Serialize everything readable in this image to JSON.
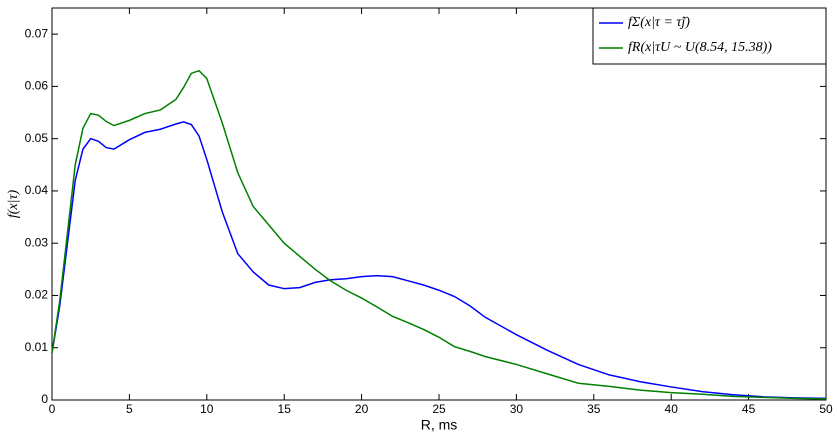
{
  "chart_data": {
    "type": "line",
    "x_label": "R, ms",
    "y_label": "f(x|τ)",
    "x": [
      0,
      0.5,
      1,
      1.5,
      2,
      2.5,
      3,
      3.5,
      4,
      5,
      6,
      7,
      8,
      8.5,
      9,
      9.5,
      10,
      11,
      12,
      13,
      14,
      15,
      16,
      17,
      18,
      19,
      20,
      21,
      22,
      23,
      24,
      25,
      26,
      27,
      28,
      30,
      32,
      34,
      36,
      38,
      40,
      42,
      44,
      46,
      48,
      50
    ],
    "series": [
      {
        "name": "fΣ(x|τ = τ̃j)",
        "color": "#0000ff",
        "values": [
          0.009,
          0.018,
          0.03,
          0.042,
          0.048,
          0.05,
          0.0495,
          0.0483,
          0.048,
          0.0498,
          0.0512,
          0.0518,
          0.0528,
          0.0532,
          0.0527,
          0.0505,
          0.046,
          0.036,
          0.028,
          0.0245,
          0.022,
          0.0213,
          0.0215,
          0.0225,
          0.023,
          0.0232,
          0.0236,
          0.0238,
          0.0236,
          0.0228,
          0.022,
          0.021,
          0.0198,
          0.018,
          0.0158,
          0.0125,
          0.0095,
          0.0068,
          0.0048,
          0.0035,
          0.0025,
          0.0016,
          0.001,
          0.0006,
          0.0004,
          0.0003
        ]
      },
      {
        "name": "fR(x|τU ~ U(8.54, 15.38))",
        "color": "#008000",
        "values": [
          0.009,
          0.019,
          0.032,
          0.045,
          0.052,
          0.0548,
          0.0545,
          0.0533,
          0.0525,
          0.0535,
          0.0548,
          0.0555,
          0.0575,
          0.0598,
          0.0625,
          0.063,
          0.0615,
          0.053,
          0.0435,
          0.037,
          0.0335,
          0.03,
          0.0275,
          0.025,
          0.0228,
          0.021,
          0.0195,
          0.0178,
          0.016,
          0.0148,
          0.0135,
          0.012,
          0.0102,
          0.0093,
          0.0083,
          0.0068,
          0.005,
          0.0032,
          0.0026,
          0.0019,
          0.0014,
          0.0011,
          0.0007,
          0.0005,
          0.0003,
          0.0002
        ]
      }
    ],
    "xlim": [
      0,
      50
    ],
    "xticks": [
      0,
      5,
      10,
      15,
      20,
      25,
      30,
      35,
      40,
      45,
      50
    ],
    "ylim": [
      0,
      0.075
    ],
    "yticks": [
      0,
      0.01,
      0.02,
      0.03,
      0.04,
      0.05,
      0.06,
      0.07
    ],
    "grid": false,
    "legend": "top-right"
  }
}
